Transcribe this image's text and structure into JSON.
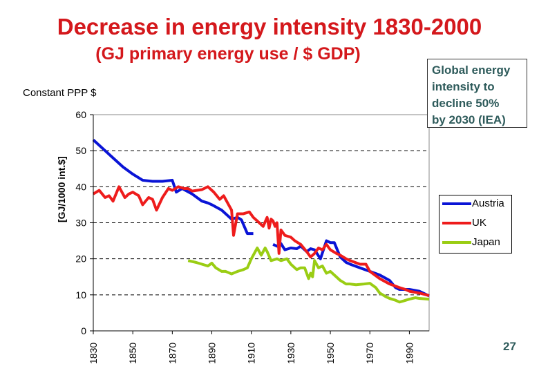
{
  "chart_data": {
    "type": "line",
    "title": "Decrease in energy intensity 1830-2000",
    "subtitle": "(GJ primary energy use / $ GDP)",
    "note_left": "Constant PPP $",
    "ylabel": "[GJ/1000 int.$]",
    "xlabel": "",
    "xlim": [
      1830,
      2000
    ],
    "ylim": [
      0,
      60
    ],
    "yticks": [
      "0",
      "10",
      "20",
      "30",
      "40",
      "50",
      "60"
    ],
    "xticks": [
      "1830",
      "1850",
      "1870",
      "1890",
      "1910",
      "1930",
      "1950",
      "1970",
      "1990"
    ],
    "grid": "horizontal dashed",
    "legend_position": "right",
    "series": [
      {
        "name": "Austria",
        "color": "#0a14d6",
        "segments": [
          [
            [
              1830,
              53
            ],
            [
              1835,
              50.5
            ],
            [
              1840,
              48
            ],
            [
              1845,
              45.5
            ],
            [
              1850,
              43.5
            ],
            [
              1855,
              41.8
            ],
            [
              1860,
              41.5
            ],
            [
              1865,
              41.5
            ],
            [
              1870,
              41.8
            ],
            [
              1872,
              38.5
            ],
            [
              1875,
              39.5
            ],
            [
              1880,
              38
            ],
            [
              1885,
              36
            ],
            [
              1888,
              35.5
            ],
            [
              1890,
              35
            ],
            [
              1895,
              33.5
            ],
            [
              1898,
              32
            ],
            [
              1900,
              31
            ],
            [
              1903,
              31.5
            ],
            [
              1905,
              30.8
            ],
            [
              1908,
              27
            ],
            [
              1911,
              27
            ]
          ],
          [
            [
              1921,
              24
            ],
            [
              1923,
              23.5
            ],
            [
              1925,
              24.2
            ],
            [
              1927,
              22.5
            ],
            [
              1930,
              23
            ],
            [
              1933,
              22.8
            ],
            [
              1935,
              23.5
            ],
            [
              1938,
              22
            ],
            [
              1940,
              22.8
            ],
            [
              1942,
              22.5
            ],
            [
              1945,
              20
            ],
            [
              1948,
              25
            ],
            [
              1950,
              24.5
            ],
            [
              1952,
              24.5
            ],
            [
              1955,
              20.5
            ],
            [
              1958,
              19
            ],
            [
              1960,
              18.5
            ],
            [
              1965,
              17.5
            ],
            [
              1970,
              16.5
            ],
            [
              1975,
              15.5
            ],
            [
              1980,
              14
            ],
            [
              1983,
              12
            ],
            [
              1985,
              11.5
            ],
            [
              1990,
              11.5
            ],
            [
              1995,
              11
            ],
            [
              2000,
              9.7
            ]
          ]
        ]
      },
      {
        "name": "UK",
        "color": "#ee1c1c",
        "segments": [
          [
            [
              1830,
              38
            ],
            [
              1833,
              39
            ],
            [
              1836,
              37
            ],
            [
              1838,
              37.5
            ],
            [
              1840,
              36
            ],
            [
              1843,
              40
            ],
            [
              1846,
              37
            ],
            [
              1848,
              38
            ],
            [
              1850,
              38.5
            ],
            [
              1853,
              37.5
            ],
            [
              1855,
              35
            ],
            [
              1858,
              37
            ],
            [
              1860,
              36.5
            ],
            [
              1862,
              33.5
            ],
            [
              1865,
              37
            ],
            [
              1868,
              39.5
            ],
            [
              1870,
              39
            ],
            [
              1873,
              40
            ],
            [
              1876,
              39.5
            ],
            [
              1878,
              39.5
            ],
            [
              1880,
              38.8
            ],
            [
              1885,
              39.2
            ],
            [
              1888,
              40
            ],
            [
              1891,
              38.5
            ],
            [
              1894,
              36.5
            ],
            [
              1896,
              37.5
            ],
            [
              1898,
              35.5
            ],
            [
              1900,
              33.5
            ],
            [
              1901,
              26.5
            ],
            [
              1903,
              32.5
            ],
            [
              1906,
              32.5
            ],
            [
              1909,
              33
            ],
            [
              1911,
              31.5
            ],
            [
              1913,
              30.5
            ],
            [
              1916,
              29
            ],
            [
              1918,
              31.5
            ],
            [
              1919,
              28.5
            ],
            [
              1920,
              31
            ],
            [
              1921,
              30.5
            ],
            [
              1922,
              29
            ],
            [
              1923,
              30
            ],
            [
              1924,
              21.5
            ],
            [
              1925,
              28
            ],
            [
              1927,
              26.5
            ],
            [
              1930,
              26
            ],
            [
              1932,
              25
            ],
            [
              1935,
              24
            ],
            [
              1938,
              22
            ],
            [
              1940,
              20.5
            ],
            [
              1942,
              21.5
            ],
            [
              1944,
              23
            ],
            [
              1946,
              22.5
            ],
            [
              1948,
              24
            ],
            [
              1950,
              22.5
            ],
            [
              1953,
              21.5
            ],
            [
              1955,
              21
            ],
            [
              1958,
              20
            ],
            [
              1960,
              19.5
            ],
            [
              1965,
              18.5
            ],
            [
              1968,
              18.5
            ],
            [
              1970,
              16.5
            ],
            [
              1975,
              14.5
            ],
            [
              1980,
              13
            ],
            [
              1985,
              12
            ],
            [
              1988,
              11.5
            ],
            [
              1990,
              11
            ],
            [
              1995,
              10.5
            ],
            [
              2000,
              9.8
            ]
          ]
        ]
      },
      {
        "name": "Japan",
        "color": "#9acd14",
        "segments": [
          [
            [
              1878,
              19.5
            ],
            [
              1882,
              19
            ],
            [
              1885,
              18.5
            ],
            [
              1888,
              18
            ],
            [
              1890,
              18.8
            ],
            [
              1892,
              17.5
            ],
            [
              1895,
              16.5
            ],
            [
              1897,
              16.5
            ],
            [
              1900,
              15.8
            ],
            [
              1903,
              16.5
            ],
            [
              1906,
              17
            ],
            [
              1908,
              17.5
            ],
            [
              1910,
              20
            ],
            [
              1913,
              23
            ],
            [
              1915,
              21
            ],
            [
              1917,
              23
            ],
            [
              1918,
              22
            ],
            [
              1920,
              19.5
            ],
            [
              1923,
              20
            ],
            [
              1925,
              19.5
            ],
            [
              1928,
              20
            ],
            [
              1930,
              18.5
            ],
            [
              1933,
              17
            ],
            [
              1935,
              17.5
            ],
            [
              1937,
              17.5
            ],
            [
              1939,
              14.5
            ],
            [
              1940,
              16
            ],
            [
              1941,
              15
            ],
            [
              1942,
              19.5
            ],
            [
              1944,
              17.5
            ],
            [
              1946,
              18
            ],
            [
              1948,
              16
            ],
            [
              1950,
              16.5
            ],
            [
              1953,
              15
            ],
            [
              1955,
              14
            ],
            [
              1958,
              13
            ],
            [
              1960,
              13
            ],
            [
              1963,
              12.8
            ],
            [
              1967,
              13
            ],
            [
              1970,
              13.2
            ],
            [
              1973,
              12
            ],
            [
              1975,
              10.5
            ],
            [
              1978,
              9.5
            ],
            [
              1980,
              9
            ],
            [
              1983,
              8.5
            ],
            [
              1985,
              8
            ],
            [
              1987,
              8.3
            ],
            [
              1990,
              8.8
            ],
            [
              1993,
              9.2
            ],
            [
              1995,
              9
            ],
            [
              2000,
              8.8
            ]
          ]
        ]
      }
    ]
  },
  "annotation": {
    "lines": [
      "Global energy",
      "intensity to",
      "decline 50%",
      "by 2030 (IEA)"
    ]
  },
  "slide_number": "27"
}
